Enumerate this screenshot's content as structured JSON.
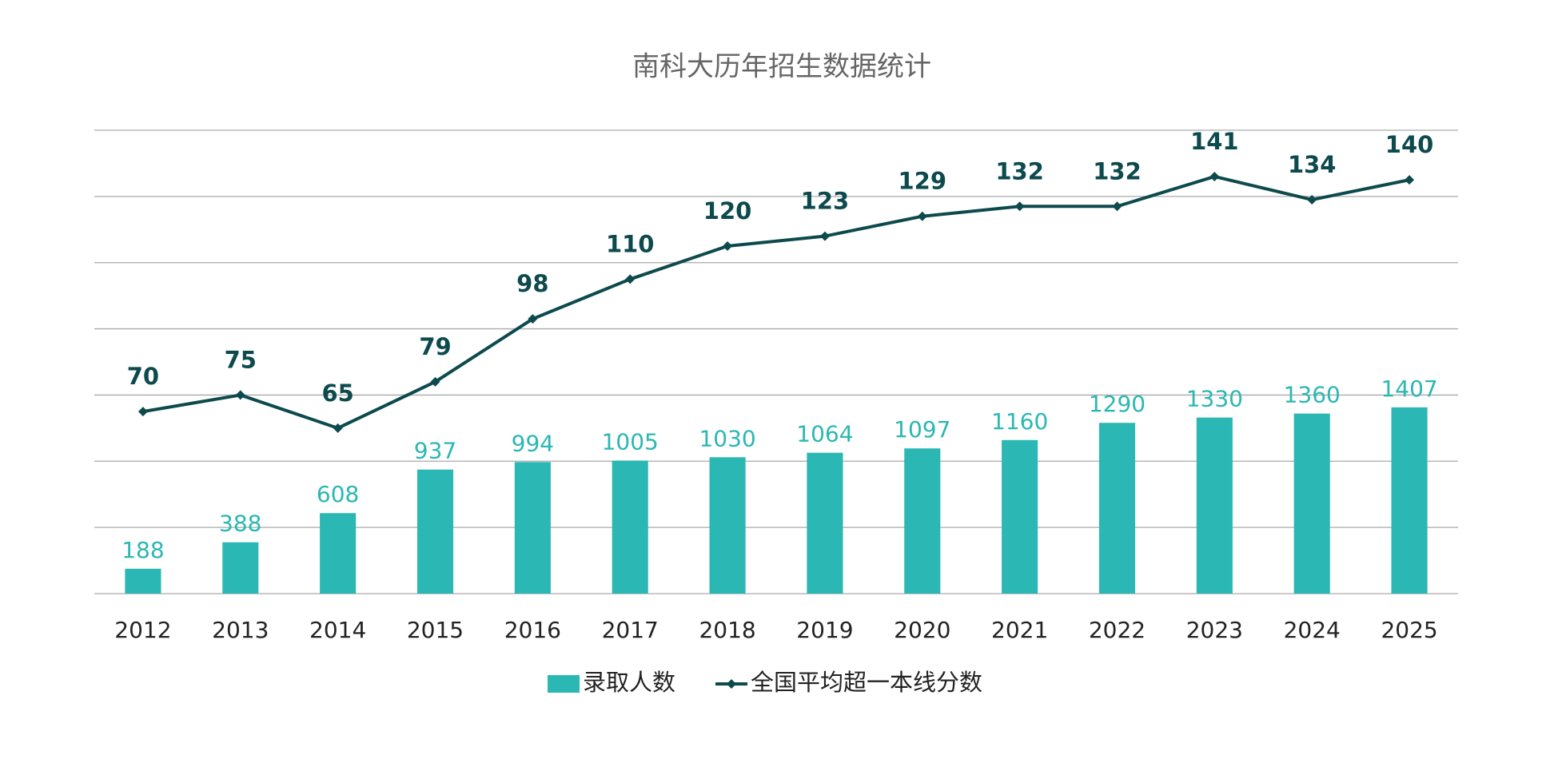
{
  "chart_data": {
    "type": "bar-line",
    "title": "南科大历年招生数据统计",
    "categories": [
      "2012",
      "2013",
      "2014",
      "2015",
      "2016",
      "2017",
      "2018",
      "2019",
      "2020",
      "2021",
      "2022",
      "2023",
      "2024",
      "2025"
    ],
    "series": [
      {
        "name": "录取人数",
        "type": "bar",
        "color": "#2bb7b3",
        "values": [
          188,
          388,
          608,
          937,
          994,
          1005,
          1030,
          1064,
          1097,
          1160,
          1290,
          1330,
          1360,
          1407
        ]
      },
      {
        "name": "全国平均超一本线分数",
        "type": "line",
        "color": "#0d4a4d",
        "axis": "y2",
        "values": [
          70,
          75,
          65,
          79,
          98,
          110,
          120,
          123,
          129,
          132,
          132,
          141,
          134,
          140
        ]
      }
    ],
    "ylim": [
      0,
      3500
    ],
    "yticks": [
      0,
      500,
      1000,
      1500,
      2000,
      2500,
      3000,
      3500
    ],
    "y2lim": [
      15,
      155
    ],
    "grid": true
  }
}
